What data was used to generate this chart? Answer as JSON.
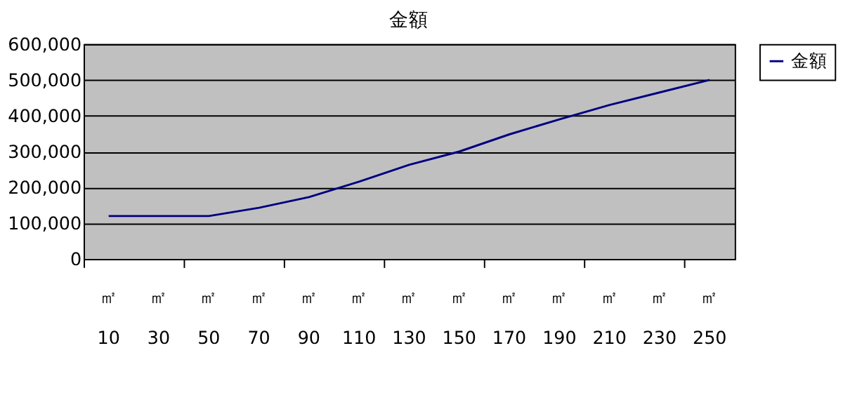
{
  "chart_data": {
    "type": "line",
    "title": "金額",
    "categories": [
      "㎡\n10",
      "㎡\n30",
      "㎡\n50",
      "㎡\n70",
      "㎡\n90",
      "㎡\n110",
      "㎡\n130",
      "㎡\n150",
      "㎡\n170",
      "㎡\n190",
      "㎡\n210",
      "㎡\n230",
      "㎡\n250"
    ],
    "series": [
      {
        "name": "金額",
        "color": "#000080",
        "values": [
          120000,
          120000,
          120000,
          143000,
          173000,
          216000,
          263000,
          300000,
          348000,
          390000,
          430000,
          465000,
          500000
        ]
      }
    ],
    "ylim": [
      0,
      600000
    ],
    "yticks": [
      0,
      {
        "value": 100000,
        "label": "100,000"
      },
      {
        "value": 200000,
        "label": "200,000"
      },
      {
        "value": 300000,
        "label": "300,000"
      },
      {
        "value": 400000,
        "label": "400,000"
      },
      {
        "value": 500000,
        "label": "500,000"
      },
      {
        "value": 600000,
        "label": "600,000"
      }
    ],
    "grid": "y",
    "legend": "right",
    "marker": "none",
    "line_style": "solid"
  }
}
